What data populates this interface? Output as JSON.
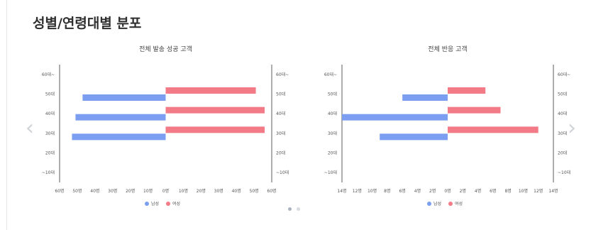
{
  "page_title": "성별/연령대별 분포",
  "nav": {
    "prev_icon": "‹",
    "next_icon": "›"
  },
  "pagination": {
    "count": 2,
    "active": 1
  },
  "colors": {
    "male": "#7b9ef0",
    "female": "#f27b87"
  },
  "chart_data": [
    {
      "type": "bar",
      "orientation": "horizontal-butterfly",
      "title": "전체 발송 성공 고객",
      "categories": [
        "60대~",
        "50대",
        "40대",
        "30대",
        "20대",
        "~10대"
      ],
      "series": [
        {
          "name": "남성",
          "values": [
            0,
            47,
            51,
            53,
            0,
            0
          ]
        },
        {
          "name": "여성",
          "values": [
            0,
            51,
            56,
            56,
            0,
            0
          ]
        }
      ],
      "xlim": [
        -60,
        60
      ],
      "x_ticks": [
        -60,
        -50,
        -40,
        -30,
        -20,
        -10,
        0,
        10,
        20,
        30,
        40,
        50,
        60
      ],
      "x_tick_labels": [
        "60명",
        "50명",
        "40명",
        "30명",
        "20명",
        "10명",
        "0명",
        "10명",
        "20명",
        "30명",
        "40명",
        "50명",
        "60명"
      ],
      "legend": "bottom"
    },
    {
      "type": "bar",
      "orientation": "horizontal-butterfly",
      "title": "전체 반응 고객",
      "categories": [
        "60대~",
        "50대",
        "40대",
        "30대",
        "20대",
        "~10대"
      ],
      "series": [
        {
          "name": "남성",
          "values": [
            0,
            6,
            14,
            9,
            0,
            0
          ]
        },
        {
          "name": "여성",
          "values": [
            0,
            5,
            7,
            12,
            0,
            0
          ]
        }
      ],
      "xlim": [
        -14,
        14
      ],
      "x_ticks": [
        -14,
        -12,
        -10,
        -8,
        -6,
        -4,
        -2,
        0,
        2,
        4,
        6,
        8,
        10,
        12,
        14
      ],
      "x_tick_labels": [
        "14명",
        "12명",
        "10명",
        "8명",
        "6명",
        "4명",
        "2명",
        "0명",
        "2명",
        "4명",
        "6명",
        "8명",
        "10명",
        "12명",
        "14명"
      ],
      "legend": "bottom"
    }
  ]
}
